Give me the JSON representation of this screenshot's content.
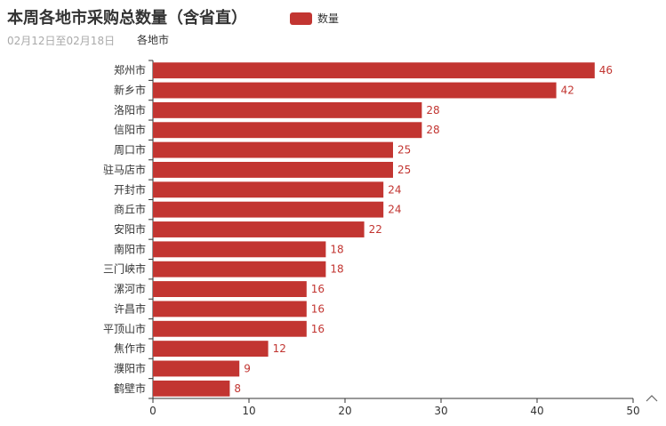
{
  "chart_data": {
    "type": "bar",
    "orientation": "horizontal",
    "title": "本周各地市采购总数量（含省直）",
    "subtitle": "02月12日至02月18日",
    "ylabel": "各地市",
    "xlabel": "",
    "legend": {
      "position": "top-center",
      "entries": [
        "数量"
      ]
    },
    "categories": [
      "郑州市",
      "新乡市",
      "洛阳市",
      "信阳市",
      "周口市",
      "驻马店市",
      "开封市",
      "商丘市",
      "安阳市",
      "南阳市",
      "三门峡市",
      "漯河市",
      "许昌市",
      "平顶山市",
      "焦作市",
      "濮阳市",
      "鹤壁市"
    ],
    "series": [
      {
        "name": "数量",
        "color": "#c23531",
        "values": [
          46,
          42,
          28,
          28,
          25,
          25,
          24,
          24,
          22,
          18,
          18,
          16,
          16,
          16,
          12,
          9,
          8
        ]
      }
    ],
    "xlim": [
      0,
      50
    ],
    "xticks": [
      0,
      10,
      20,
      30,
      40,
      50
    ],
    "grid": false,
    "data_labels": true
  },
  "toolbox": {
    "icon": "chevron-up-icon",
    "glyph": "^"
  }
}
